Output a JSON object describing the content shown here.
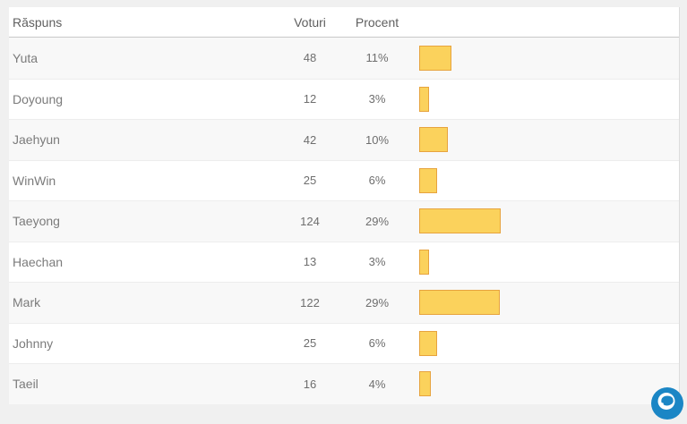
{
  "table": {
    "headers": {
      "answer": "Răspuns",
      "votes": "Voturi",
      "percent": "Procent"
    },
    "rows": [
      {
        "answer": "Yuta",
        "votes": 48,
        "percent": "11%"
      },
      {
        "answer": "Doyoung",
        "votes": 12,
        "percent": "3%"
      },
      {
        "answer": "Jaehyun",
        "votes": 42,
        "percent": "10%"
      },
      {
        "answer": "WinWin",
        "votes": 25,
        "percent": "6%"
      },
      {
        "answer": "Taeyong",
        "votes": 124,
        "percent": "29%"
      },
      {
        "answer": "Haechan",
        "votes": 13,
        "percent": "3%"
      },
      {
        "answer": "Mark",
        "votes": 122,
        "percent": "29%"
      },
      {
        "answer": "Johnny",
        "votes": 25,
        "percent": "6%"
      },
      {
        "answer": "Taeil",
        "votes": 16,
        "percent": "4%"
      }
    ]
  },
  "chart_data": {
    "type": "bar",
    "orientation": "horizontal",
    "categories": [
      "Yuta",
      "Doyoung",
      "Jaehyun",
      "WinWin",
      "Taeyong",
      "Haechan",
      "Mark",
      "Johnny",
      "Taeil"
    ],
    "series": [
      {
        "name": "Voturi",
        "values": [
          48,
          12,
          42,
          25,
          124,
          13,
          122,
          25,
          16
        ]
      },
      {
        "name": "Procent",
        "values": [
          11,
          3,
          10,
          6,
          29,
          3,
          29,
          6,
          4
        ]
      }
    ],
    "title": "",
    "xlabel": "",
    "ylabel": "",
    "value_range": [
      0,
      124
    ],
    "grid": false,
    "legend": false,
    "bar_color": "#fbd25c"
  },
  "colors": {
    "bar_fill": "#fbd25c",
    "bar_border": "#e7a33e",
    "row_alt": "#f8f8f8",
    "logo_blue": "#1b86c5",
    "text": "#6e6e6e"
  },
  "icons": {
    "logo": "globe-icon"
  }
}
